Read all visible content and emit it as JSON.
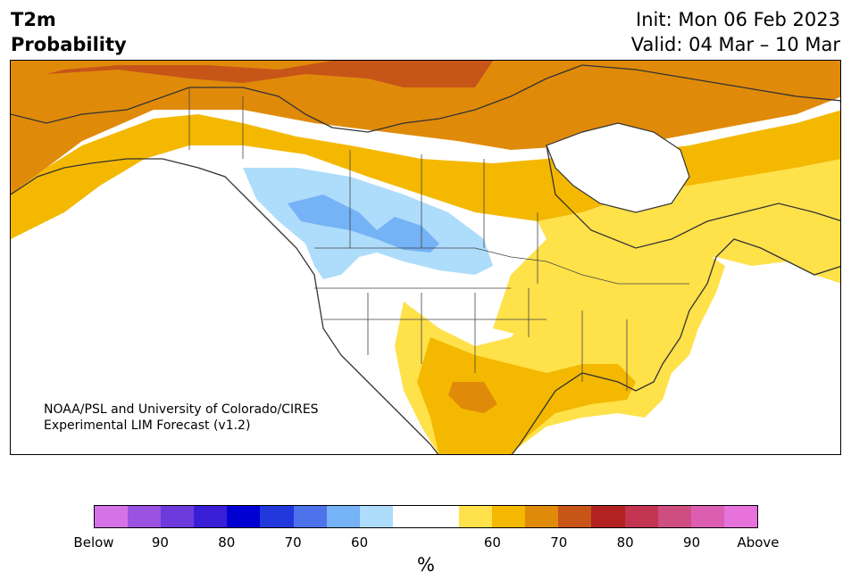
{
  "header": {
    "title_line1": "T2m",
    "title_line2": "Probability",
    "init_text": "Init: Mon 06 Feb 2023",
    "valid_text": "Valid: 04 Mar – 10 Mar"
  },
  "map": {
    "credit_line1": "NOAA/PSL and University of Colorado/CIRES",
    "credit_line2": "Experimental LIM Forecast (v1.2)"
  },
  "colorbar": {
    "colors": [
      "#d672e8",
      "#9a52e0",
      "#6d3adc",
      "#3a1ed6",
      "#0000d2",
      "#2238dc",
      "#4d72ea",
      "#75b2f6",
      "#aedcfb",
      "#ffffff",
      "#ffffff",
      "#ffe14a",
      "#f4b800",
      "#e08a0a",
      "#c75518",
      "#b22222",
      "#c23450",
      "#cf4e80",
      "#dc5eb0",
      "#e872dc"
    ],
    "tick_labels": [
      "Below",
      "90",
      "80",
      "70",
      "60",
      "60",
      "70",
      "80",
      "90",
      "Above"
    ],
    "unit": "%"
  }
}
